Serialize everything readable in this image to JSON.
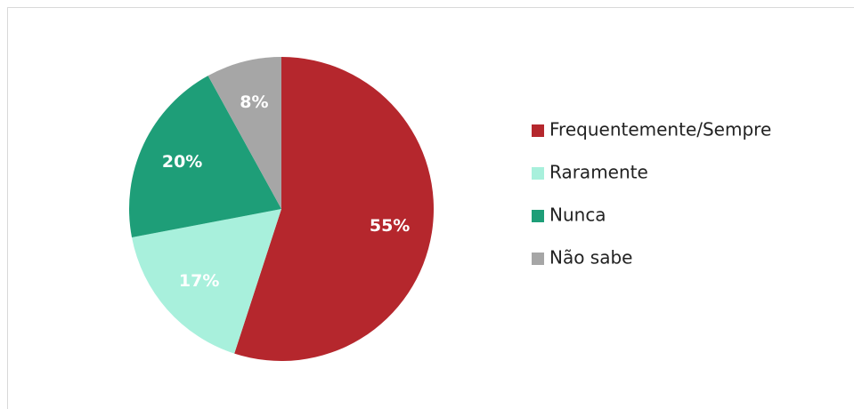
{
  "chart_data": {
    "type": "pie",
    "categories": [
      "Frequentemente/Sempre",
      "Raramente",
      "Nunca",
      "Não sabe"
    ],
    "values": [
      55,
      17,
      20,
      8
    ],
    "value_labels": [
      "55%",
      "17%",
      "20%",
      "8%"
    ],
    "colors": [
      "#b5272d",
      "#a8f0dc",
      "#1e9e78",
      "#a6a6a6"
    ]
  }
}
